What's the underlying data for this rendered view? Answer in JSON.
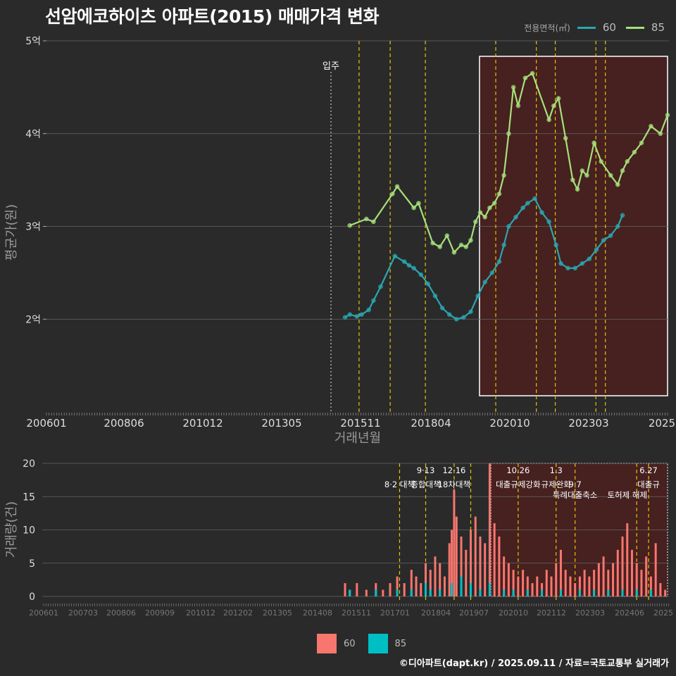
{
  "title": "선암에코하이츠 아파트(2015) 매매가격 변화",
  "credit": "©디아파트(dapt.kr) / 2025.09.11 / 자료=국토교통부 실거래가",
  "legend_top": {
    "title": "전용면적(㎡)",
    "items": [
      {
        "label": "60",
        "color": "#2aa7b0"
      },
      {
        "label": "85",
        "color": "#a6e07a"
      }
    ]
  },
  "legend_bottom": {
    "items": [
      {
        "label": "60",
        "color": "#f8766d"
      },
      {
        "label": "85",
        "color": "#00bfc4"
      }
    ]
  },
  "chart_data": [
    {
      "type": "line",
      "xlabel": "거래년월",
      "ylabel": "평균가(원)",
      "x_ticks": [
        "200601",
        "200806",
        "201012",
        "201305",
        "201511",
        "201804",
        "202010",
        "202303",
        "2025"
      ],
      "y_ticks": [
        "2억",
        "3억",
        "4억",
        "5억"
      ],
      "ylim": [
        1.0,
        5.0
      ],
      "annotations": [
        {
          "label": "입주",
          "x": 2015.0
        }
      ],
      "series": [
        {
          "name": "60",
          "color": "#2aa7b0",
          "points": [
            [
              2015.3,
              2.02
            ],
            [
              2015.5,
              2.05
            ],
            [
              2015.8,
              2.03
            ],
            [
              2016.0,
              2.05
            ],
            [
              2016.3,
              2.1
            ],
            [
              2016.5,
              2.2
            ],
            [
              2016.8,
              2.35
            ],
            [
              2017.4,
              2.68
            ],
            [
              2017.8,
              2.62
            ],
            [
              2018.0,
              2.58
            ],
            [
              2018.2,
              2.55
            ],
            [
              2018.5,
              2.48
            ],
            [
              2018.8,
              2.38
            ],
            [
              2019.1,
              2.25
            ],
            [
              2019.4,
              2.12
            ],
            [
              2019.7,
              2.05
            ],
            [
              2020.0,
              2.0
            ],
            [
              2020.3,
              2.02
            ],
            [
              2020.6,
              2.08
            ],
            [
              2020.9,
              2.25
            ],
            [
              2021.2,
              2.4
            ],
            [
              2021.5,
              2.5
            ],
            [
              2021.8,
              2.62
            ],
            [
              2022.0,
              2.8
            ],
            [
              2022.2,
              3.0
            ],
            [
              2022.5,
              3.1
            ],
            [
              2022.8,
              3.2
            ],
            [
              2023.0,
              3.25
            ],
            [
              2023.3,
              3.3
            ],
            [
              2023.6,
              3.15
            ],
            [
              2023.9,
              3.05
            ],
            [
              2024.2,
              2.8
            ],
            [
              2024.4,
              2.6
            ],
            [
              2024.7,
              2.55
            ],
            [
              2025.0,
              2.55
            ],
            [
              2025.3,
              2.6
            ],
            [
              2025.6,
              2.65
            ],
            [
              2025.9,
              2.75
            ],
            [
              2026.2,
              2.85
            ],
            [
              2026.5,
              2.9
            ],
            [
              2026.8,
              3.0
            ],
            [
              2027.0,
              3.12
            ]
          ]
        },
        {
          "name": "85",
          "color": "#a6e07a",
          "points": [
            [
              2015.5,
              3.01
            ],
            [
              2016.2,
              3.08
            ],
            [
              2016.5,
              3.05
            ],
            [
              2017.3,
              3.35
            ],
            [
              2017.5,
              3.43
            ],
            [
              2018.2,
              3.2
            ],
            [
              2018.4,
              3.25
            ],
            [
              2019.0,
              2.82
            ],
            [
              2019.3,
              2.78
            ],
            [
              2019.6,
              2.9
            ],
            [
              2019.9,
              2.72
            ],
            [
              2020.2,
              2.8
            ],
            [
              2020.4,
              2.78
            ],
            [
              2020.6,
              2.85
            ],
            [
              2020.8,
              3.05
            ],
            [
              2021.0,
              3.15
            ],
            [
              2021.2,
              3.1
            ],
            [
              2021.4,
              3.2
            ],
            [
              2021.6,
              3.25
            ],
            [
              2021.8,
              3.35
            ],
            [
              2022.0,
              3.55
            ],
            [
              2022.2,
              4.0
            ],
            [
              2022.4,
              4.5
            ],
            [
              2022.6,
              4.3
            ],
            [
              2022.9,
              4.6
            ],
            [
              2023.2,
              4.65
            ],
            [
              2023.9,
              4.15
            ],
            [
              2024.1,
              4.3
            ],
            [
              2024.3,
              4.38
            ],
            [
              2024.6,
              3.95
            ],
            [
              2024.9,
              3.5
            ],
            [
              2025.1,
              3.4
            ],
            [
              2025.3,
              3.6
            ],
            [
              2025.5,
              3.55
            ],
            [
              2025.8,
              3.9
            ],
            [
              2026.1,
              3.7
            ],
            [
              2026.5,
              3.55
            ],
            [
              2026.8,
              3.45
            ],
            [
              2027.0,
              3.6
            ],
            [
              2027.2,
              3.7
            ],
            [
              2027.5,
              3.8
            ],
            [
              2027.8,
              3.9
            ],
            [
              2028.2,
              4.08
            ],
            [
              2028.6,
              4.0
            ],
            [
              2028.9,
              4.2
            ]
          ]
        }
      ]
    },
    {
      "type": "bar",
      "ylabel": "거래량(건)",
      "y_ticks": [
        "0",
        "5",
        "10",
        "15",
        "20"
      ],
      "ylim": [
        0,
        20
      ],
      "x_ticks": [
        "200601",
        "200703",
        "200806",
        "200909",
        "201012",
        "201202",
        "201305",
        "201408",
        "201511",
        "201701",
        "201804",
        "201907",
        "202010",
        "202112",
        "202303",
        "202406",
        "2025"
      ],
      "annotations": [
        {
          "label": "8·2 대책",
          "row": 2,
          "x": 2017.6
        },
        {
          "label": "9·13",
          "row": 1,
          "x": 2018.7
        },
        {
          "label": "종합대책",
          "row": 2,
          "x": 2018.7
        },
        {
          "label": "12·16",
          "row": 1,
          "x": 2019.9
        },
        {
          "label": "18차대책",
          "row": 2,
          "x": 2019.9
        },
        {
          "label": "10.26",
          "row": 1,
          "x": 2022.6
        },
        {
          "label": "대출규제강화",
          "row": 2,
          "x": 2022.6
        },
        {
          "label": "1.3",
          "row": 1,
          "x": 2024.2
        },
        {
          "label": "규제완화",
          "row": 2,
          "x": 2024.2
        },
        {
          "label": "9.7",
          "row": 2,
          "x": 2025.0
        },
        {
          "label": "특례대출축소",
          "row": 3,
          "x": 2025.0
        },
        {
          "label": "토허제 해제",
          "row": 3,
          "x": 2027.2
        },
        {
          "label": "6.27",
          "row": 1,
          "x": 2028.1
        },
        {
          "label": "대출규",
          "row": 2,
          "x": 2028.1
        }
      ],
      "series": [
        {
          "name": "60",
          "color": "#f8766d",
          "values": [
            [
              2015.3,
              2
            ],
            [
              2015.5,
              1
            ],
            [
              2015.8,
              2
            ],
            [
              2016.2,
              1
            ],
            [
              2016.6,
              2
            ],
            [
              2016.9,
              1
            ],
            [
              2017.2,
              2
            ],
            [
              2017.5,
              3
            ],
            [
              2017.8,
              2
            ],
            [
              2018.1,
              4
            ],
            [
              2018.3,
              3
            ],
            [
              2018.5,
              2
            ],
            [
              2018.7,
              5
            ],
            [
              2018.9,
              4
            ],
            [
              2019.1,
              6
            ],
            [
              2019.3,
              5
            ],
            [
              2019.5,
              3
            ],
            [
              2019.7,
              8
            ],
            [
              2019.8,
              10
            ],
            [
              2019.9,
              16
            ],
            [
              2020.0,
              12
            ],
            [
              2020.2,
              9
            ],
            [
              2020.4,
              7
            ],
            [
              2020.6,
              10
            ],
            [
              2020.8,
              12
            ],
            [
              2021.0,
              9
            ],
            [
              2021.2,
              8
            ],
            [
              2021.4,
              20
            ],
            [
              2021.6,
              11
            ],
            [
              2021.8,
              9
            ],
            [
              2022.0,
              6
            ],
            [
              2022.2,
              5
            ],
            [
              2022.4,
              4
            ],
            [
              2022.6,
              3
            ],
            [
              2022.8,
              4
            ],
            [
              2023.0,
              3
            ],
            [
              2023.2,
              2
            ],
            [
              2023.4,
              3
            ],
            [
              2023.6,
              2
            ],
            [
              2023.8,
              4
            ],
            [
              2024.0,
              3
            ],
            [
              2024.2,
              5
            ],
            [
              2024.4,
              7
            ],
            [
              2024.6,
              4
            ],
            [
              2024.8,
              3
            ],
            [
              2025.0,
              2
            ],
            [
              2025.2,
              3
            ],
            [
              2025.4,
              4
            ],
            [
              2025.6,
              3
            ],
            [
              2025.8,
              4
            ],
            [
              2026.0,
              5
            ],
            [
              2026.2,
              6
            ],
            [
              2026.4,
              4
            ],
            [
              2026.6,
              5
            ],
            [
              2026.8,
              7
            ],
            [
              2027.0,
              9
            ],
            [
              2027.2,
              11
            ],
            [
              2027.4,
              7
            ],
            [
              2027.6,
              5
            ],
            [
              2027.8,
              4
            ],
            [
              2028.0,
              6
            ],
            [
              2028.2,
              3
            ],
            [
              2028.4,
              8
            ],
            [
              2028.6,
              2
            ],
            [
              2028.8,
              1
            ]
          ]
        },
        {
          "name": "85",
          "color": "#00bfc4",
          "values": [
            [
              2015.5,
              1
            ],
            [
              2016.6,
              1
            ],
            [
              2017.5,
              1
            ],
            [
              2018.1,
              1
            ],
            [
              2018.7,
              2
            ],
            [
              2018.9,
              1
            ],
            [
              2019.3,
              1
            ],
            [
              2019.8,
              2
            ],
            [
              2020.2,
              3
            ],
            [
              2020.6,
              2
            ],
            [
              2021.0,
              1
            ],
            [
              2021.4,
              2
            ],
            [
              2022.0,
              1
            ],
            [
              2022.4,
              1
            ],
            [
              2023.0,
              1
            ],
            [
              2023.6,
              1
            ],
            [
              2024.4,
              1
            ],
            [
              2025.2,
              1
            ],
            [
              2025.8,
              1
            ],
            [
              2026.4,
              1
            ],
            [
              2027.0,
              1
            ],
            [
              2027.6,
              1
            ],
            [
              2028.2,
              1
            ]
          ]
        }
      ]
    }
  ]
}
